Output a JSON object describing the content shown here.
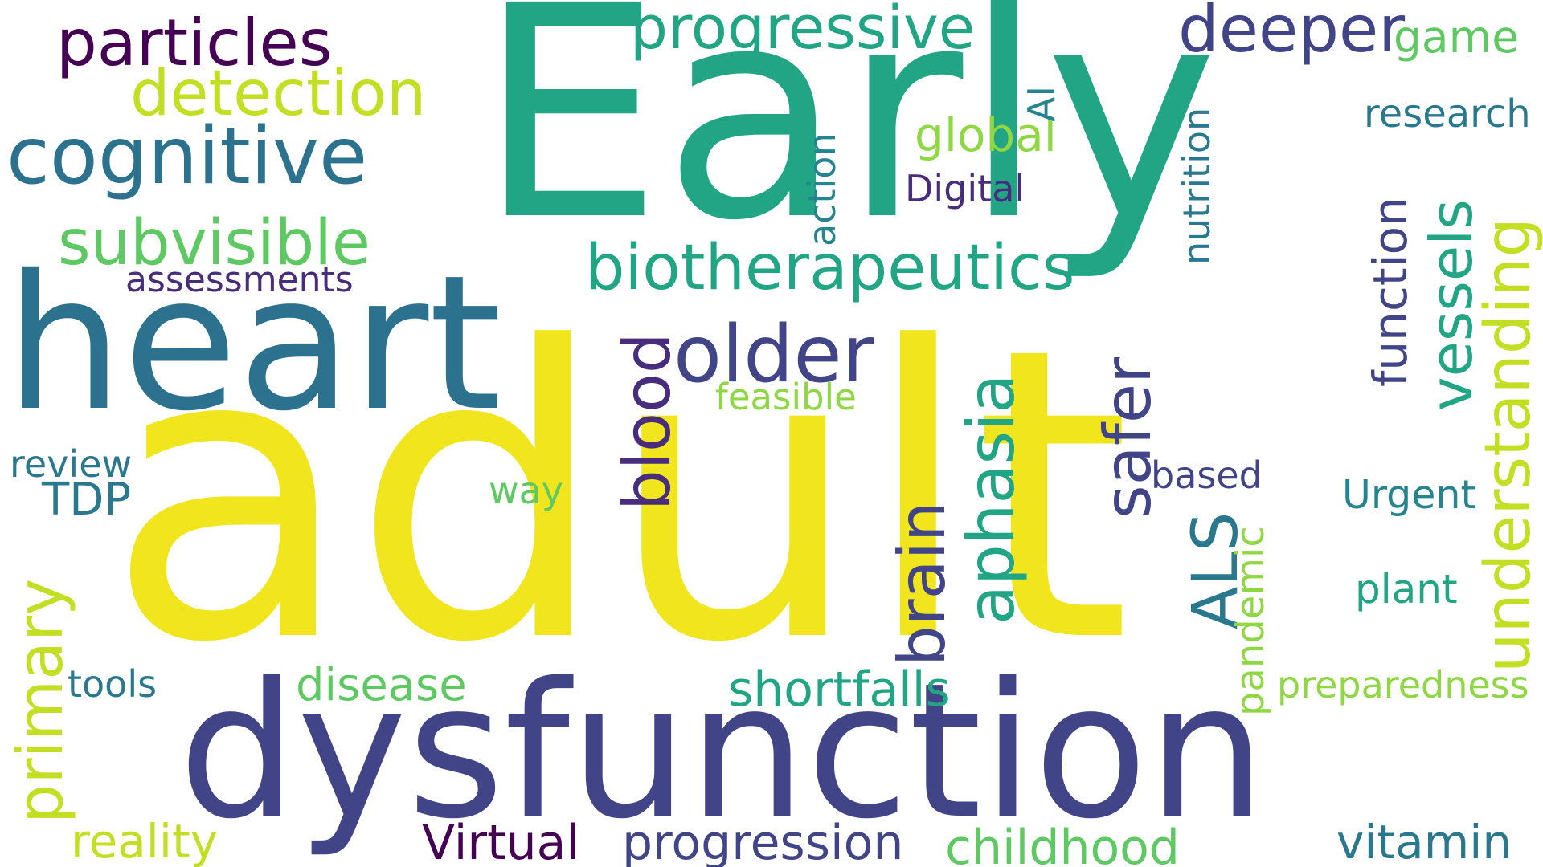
{
  "title": "Word cloud",
  "palette": {
    "yellow": "#f1e51d",
    "teal": "#21a585",
    "navy": "#414487",
    "blue_teal": "#2c728e",
    "dark_purple": "#440154",
    "purple": "#472d7b",
    "green": "#5ec962",
    "lime": "#c2df23",
    "light_green": "#8fd744",
    "sea_teal": "#25848e",
    "mid_teal": "#2a788e"
  },
  "words": {
    "adult": "adult",
    "early": "Early",
    "dysfunction": "dysfunction",
    "heart": "heart",
    "cognitive": "cognitive",
    "biotherapeutics": "biotherapeutics",
    "older": "older",
    "particles": "particles",
    "progressive": "progressive",
    "deeper": "deeper",
    "detection": "detection",
    "subvisible": "subvisible",
    "understanding": "understanding",
    "vessels": "vessels",
    "blood": "blood",
    "safer": "safer",
    "aphasia": "aphasia",
    "brain": "brain",
    "als": "ALS",
    "primary": "primary",
    "function": "function",
    "game": "game",
    "research": "research",
    "global": "global",
    "ai": "AI",
    "action": "action",
    "digital": "Digital",
    "nutrition": "nutrition",
    "assessments": "assessments",
    "feasible": "feasible",
    "review": "review",
    "tdp": "TDP",
    "way": "way",
    "based": "based",
    "urgent": "Urgent",
    "pandemic": "pandemic",
    "plant": "plant",
    "preparedness": "preparedness",
    "tools": "tools",
    "disease": "disease",
    "shortfalls": "shortfalls",
    "reality": "reality",
    "virtual": "Virtual",
    "progression": "progression",
    "childhood": "childhood",
    "vitamin": "vitamin"
  }
}
